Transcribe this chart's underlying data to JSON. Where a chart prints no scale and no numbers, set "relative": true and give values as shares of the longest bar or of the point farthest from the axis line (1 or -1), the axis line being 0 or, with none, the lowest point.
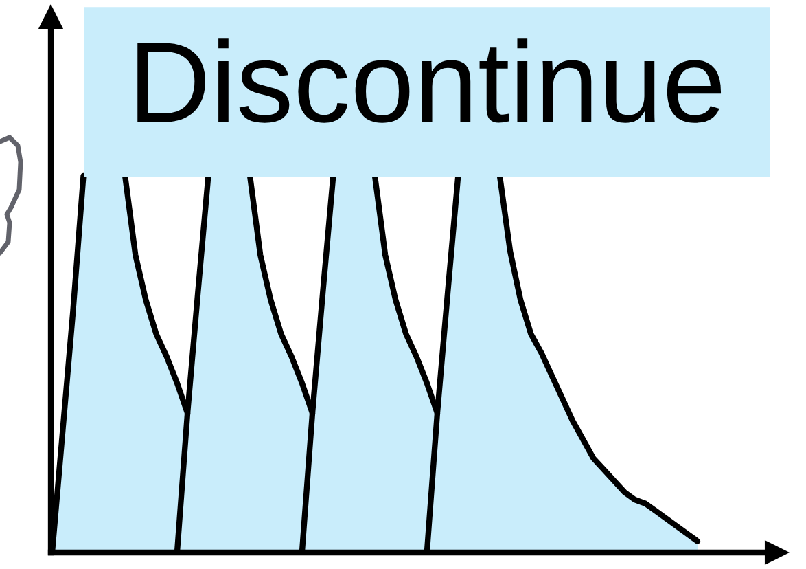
{
  "chart_data": {
    "type": "area",
    "relative": true,
    "categories": [
      null,
      null,
      null,
      null,
      null,
      null,
      null,
      null,
      null,
      null,
      null,
      null,
      null,
      null,
      null,
      null,
      null,
      null,
      null,
      null,
      null,
      null,
      null,
      null,
      null,
      null,
      null,
      null,
      null,
      null,
      null,
      null,
      null,
      null,
      null,
      null,
      null,
      null,
      null,
      null,
      null,
      null,
      null,
      null,
      null,
      null,
      null,
      null,
      null,
      null,
      null,
      null,
      null,
      null,
      null,
      null,
      null,
      null,
      null,
      null,
      null,
      null,
      null
    ],
    "series": [
      {
        "color": "#c9edfb",
        "values": [
          0,
          0.32,
          0.64,
          1.0,
          null,
          null,
          null,
          1.0,
          0.79,
          0.67,
          0.58,
          0.52,
          0.45,
          0.37,
          null,
          null,
          null,
          null,
          null,
          null,
          null,
          null,
          null,
          null,
          null,
          null,
          null,
          null,
          null,
          null,
          null,
          null,
          null,
          null,
          null,
          null,
          null,
          null,
          null,
          null,
          null,
          null,
          null,
          null,
          null,
          null,
          null,
          null,
          null,
          null,
          null,
          null,
          null,
          null,
          null,
          null,
          null,
          null,
          null,
          null,
          null,
          null,
          null
        ]
      },
      {
        "color": "#c9edfb",
        "values": [
          null,
          null,
          null,
          null,
          null,
          null,
          null,
          null,
          null,
          null,
          null,
          null,
          0,
          0.37,
          0.69,
          1.0,
          null,
          null,
          null,
          1.0,
          0.79,
          0.67,
          0.58,
          0.52,
          0.45,
          0.37,
          null,
          null,
          null,
          null,
          null,
          null,
          null,
          null,
          null,
          null,
          null,
          null,
          null,
          null,
          null,
          null,
          null,
          null,
          null,
          null,
          null,
          null,
          null,
          null,
          null,
          null,
          null,
          null,
          null,
          null,
          null,
          null,
          null,
          null,
          null,
          null,
          null
        ]
      },
      {
        "color": "#c9edfb",
        "values": [
          null,
          null,
          null,
          null,
          null,
          null,
          null,
          null,
          null,
          null,
          null,
          null,
          null,
          null,
          null,
          null,
          null,
          null,
          null,
          null,
          null,
          null,
          null,
          null,
          0,
          0.37,
          0.69,
          1.0,
          null,
          null,
          null,
          1.0,
          0.79,
          0.67,
          0.58,
          0.52,
          0.45,
          0.37,
          null,
          null,
          null,
          null,
          null,
          null,
          null,
          null,
          null,
          null,
          null,
          null,
          null,
          null,
          null,
          null,
          null,
          null,
          null,
          null,
          null,
          null,
          null,
          null,
          null
        ]
      },
      {
        "color": "#c9edfb",
        "values": [
          null,
          null,
          null,
          null,
          null,
          null,
          null,
          null,
          null,
          null,
          null,
          null,
          null,
          null,
          null,
          null,
          null,
          null,
          null,
          null,
          null,
          null,
          null,
          null,
          null,
          null,
          null,
          null,
          null,
          null,
          null,
          null,
          null,
          null,
          null,
          null,
          0,
          0.37,
          0.69,
          1.0,
          null,
          null,
          null,
          1.0,
          0.8,
          0.67,
          0.58,
          0.53,
          0.47,
          0.41,
          0.35,
          0.3,
          0.25,
          0.22,
          0.19,
          0.16,
          0.14,
          0.13,
          0.11,
          0.09,
          0.07,
          0.05,
          0.03
        ]
      }
    ],
    "annotations": [
      "Discontinue"
    ]
  }
}
